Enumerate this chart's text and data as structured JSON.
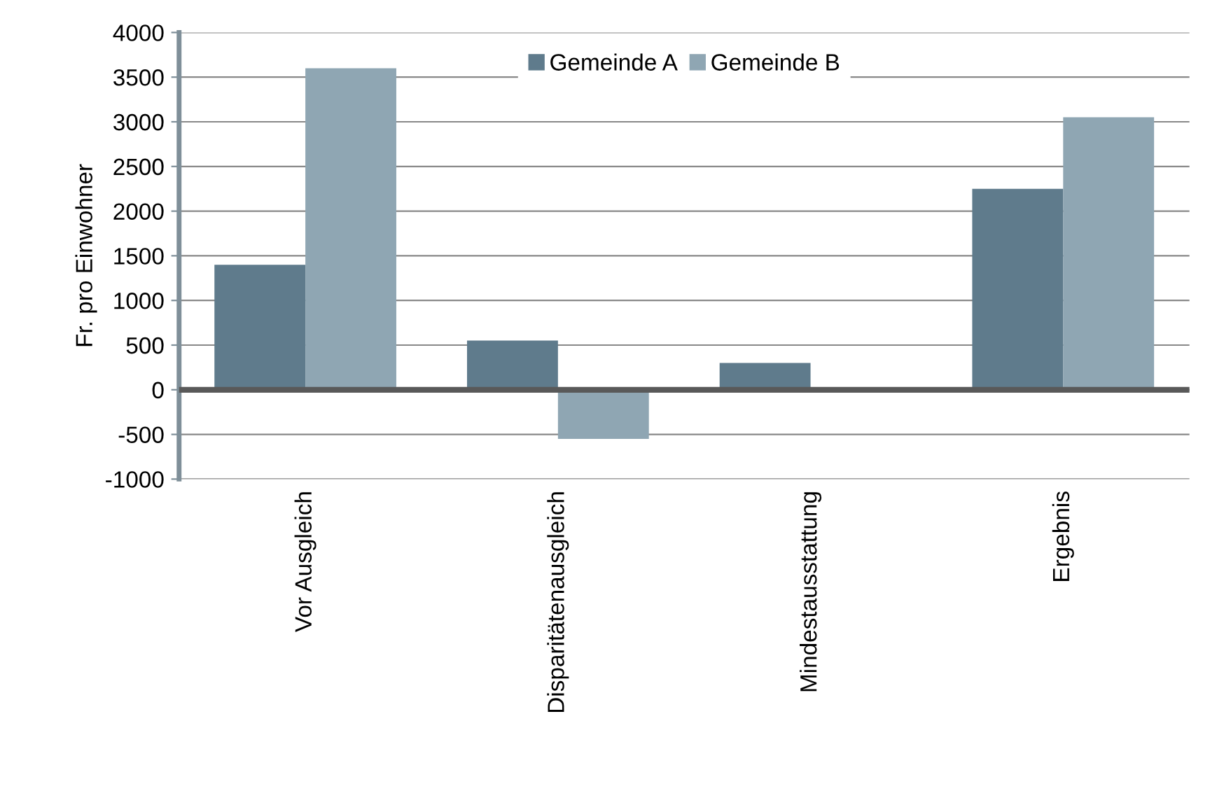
{
  "chart_data": {
    "type": "bar",
    "ylabel": "Fr. pro Einwohner",
    "categories": [
      "Vor Ausgleich",
      "Disparitätenausgleich",
      "Mindestausstattung",
      "Ergebnis"
    ],
    "series": [
      {
        "name": "Gemeinde A",
        "color": "#5f7b8c",
        "values": [
          1400,
          550,
          300,
          2250
        ]
      },
      {
        "name": "Gemeinde B",
        "color": "#8fa6b3",
        "values": [
          3600,
          -550,
          0,
          3050
        ]
      }
    ],
    "ylim": [
      -1000,
      4000
    ],
    "yticks": [
      -1000,
      -500,
      0,
      500,
      1000,
      1500,
      2000,
      2500,
      3000,
      3500,
      4000
    ],
    "grid": "y",
    "legend": "top"
  }
}
